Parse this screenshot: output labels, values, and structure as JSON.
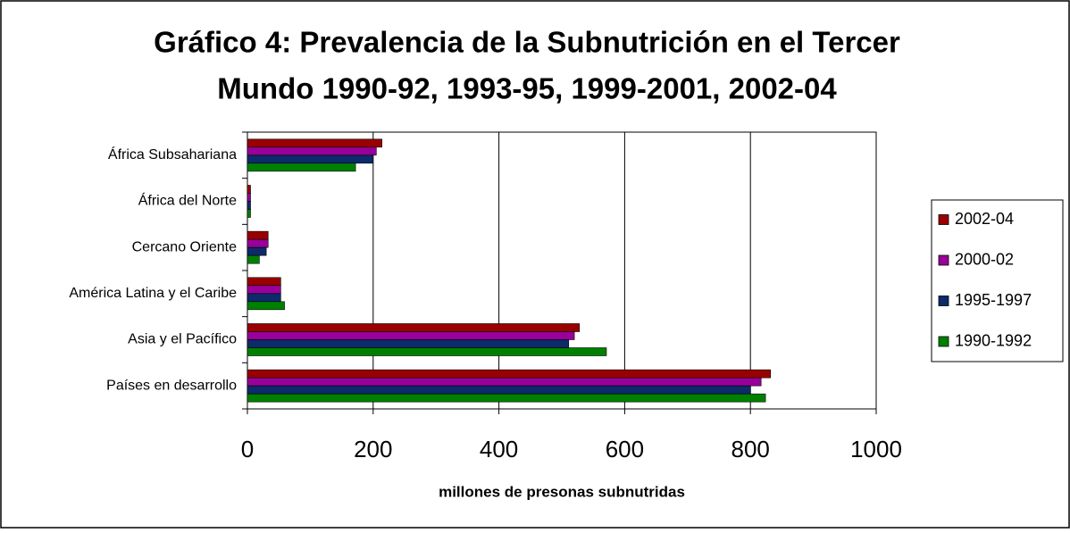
{
  "chart_data": {
    "type": "hbar",
    "title": [
      "Gráfico 4: Prevalencia de la Subnutrición en el Tercer",
      "Mundo 1990-92, 1993-95, 1999-2001, 2002-04"
    ],
    "x_label": "millones de presonas subnutridas",
    "categories": [
      "África Subsahariana",
      "África del Norte",
      "Cercano Oriente",
      "América Latina y el Caribe",
      "Asia y el Pacífico",
      "Países en desarrollo"
    ],
    "series": [
      {
        "name": "2002-04",
        "color": "#990000",
        "values": [
          214,
          5,
          33,
          53,
          528,
          832
        ]
      },
      {
        "name": "2000-02",
        "color": "#990099",
        "values": [
          205,
          5,
          33,
          53,
          520,
          817
        ]
      },
      {
        "name": "1995-1997",
        "color": "#0d2a6b",
        "values": [
          200,
          5,
          30,
          53,
          511,
          800
        ]
      },
      {
        "name": "1990-1992",
        "color": "#008000",
        "values": [
          172,
          5,
          19,
          59,
          571,
          824
        ]
      }
    ],
    "xlim": [
      0,
      1000
    ],
    "xticks": [
      0,
      200,
      400,
      600,
      800,
      1000
    ],
    "grid": true,
    "legend": "right"
  }
}
